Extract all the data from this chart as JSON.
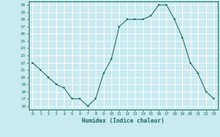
{
  "x": [
    0,
    1,
    2,
    3,
    4,
    5,
    6,
    7,
    8,
    9,
    10,
    11,
    12,
    13,
    14,
    15,
    16,
    17,
    18,
    19,
    20,
    21,
    22,
    23
  ],
  "y": [
    22,
    21,
    20,
    19,
    18.5,
    17,
    17,
    16,
    17,
    20.5,
    22.5,
    27,
    28,
    28,
    28,
    28.5,
    30,
    30,
    28,
    25.5,
    22,
    20.5,
    18,
    17
  ],
  "line_color": "#1a6b5a",
  "marker_color": "#1a6b5a",
  "bg_color": "#c8eaf0",
  "grid_color": "#ffffff",
  "xlabel": "Humidex (Indice chaleur)",
  "xlim": [
    -0.5,
    23.5
  ],
  "ylim": [
    15.5,
    30.5
  ],
  "yticks": [
    16,
    17,
    18,
    19,
    20,
    21,
    22,
    23,
    24,
    25,
    26,
    27,
    28,
    29,
    30
  ],
  "xticks": [
    0,
    1,
    2,
    3,
    4,
    5,
    6,
    7,
    8,
    9,
    10,
    11,
    12,
    13,
    14,
    15,
    16,
    17,
    18,
    19,
    20,
    21,
    22,
    23
  ]
}
